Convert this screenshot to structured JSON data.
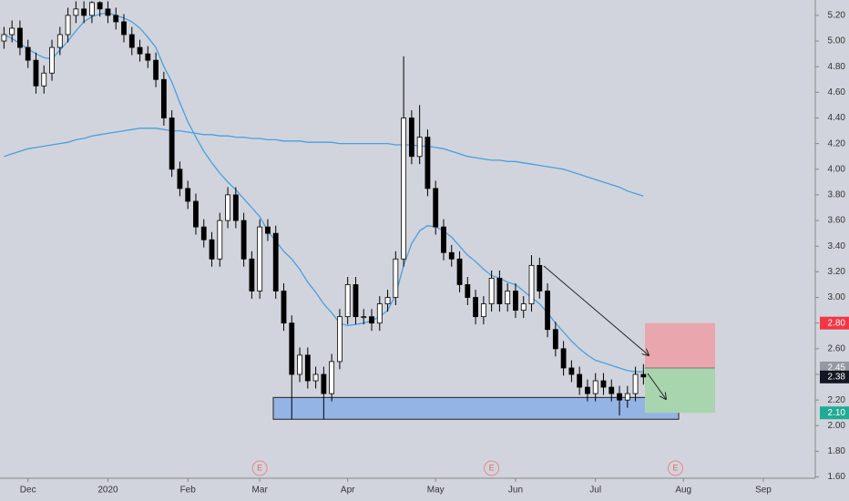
{
  "chart_data": {
    "type": "candlestick",
    "categories": [
      null,
      null,
      null,
      "Dec",
      null,
      null,
      null,
      null,
      null,
      null,
      null,
      null,
      null,
      "2020",
      null,
      null,
      null,
      null,
      null,
      null,
      null,
      null,
      null,
      "Feb",
      null,
      null,
      null,
      null,
      null,
      null,
      null,
      null,
      "Mar",
      null,
      null,
      null,
      null,
      null,
      null,
      null,
      null,
      null,
      null,
      "Apr",
      null,
      null,
      null,
      null,
      null,
      null,
      null,
      null,
      null,
      null,
      "May",
      null,
      null,
      null,
      null,
      null,
      null,
      null,
      null,
      null,
      "Jun",
      null,
      null,
      null,
      null,
      null,
      null,
      null,
      null,
      null,
      "Jul",
      null,
      null,
      null,
      null,
      null,
      null,
      null,
      null,
      null,
      null,
      "Aug",
      null,
      null,
      null,
      null,
      null,
      null,
      null,
      null,
      null,
      "Sep",
      null,
      null,
      null,
      null,
      null,
      null
    ],
    "open": [
      5.0,
      5.05,
      5.1,
      4.95,
      4.85,
      4.65,
      4.75,
      4.95,
      5.05,
      5.2,
      5.25,
      5.2,
      5.3,
      5.25,
      5.2,
      5.15,
      5.05,
      4.95,
      4.9,
      4.85,
      4.7,
      4.4,
      4.0,
      3.85,
      3.75,
      3.55,
      3.45,
      3.3,
      3.6,
      3.8,
      3.6,
      3.3,
      3.05,
      3.55,
      3.5,
      3.05,
      2.8,
      2.4,
      2.55,
      2.35,
      2.4,
      2.25,
      2.5,
      2.85,
      3.1,
      2.85,
      2.85,
      2.8,
      2.95,
      3.0,
      3.3,
      4.4,
      4.1,
      4.25,
      3.85,
      3.55,
      3.35,
      3.3,
      3.1,
      3.0,
      2.85,
      2.95,
      3.15,
      2.95,
      3.05,
      2.9,
      2.95,
      3.25,
      3.05,
      2.75,
      2.6,
      2.45,
      2.4,
      2.3,
      2.25,
      2.35,
      2.3,
      2.25,
      2.2,
      2.25,
      2.4,
      null,
      null,
      null,
      null,
      null,
      null,
      null,
      null,
      null,
      null,
      null,
      null,
      null,
      null,
      null,
      null,
      null,
      null,
      null,
      null,
      null
    ],
    "high": [
      5.11,
      5.16,
      5.16,
      5.01,
      4.91,
      4.81,
      5.01,
      5.11,
      5.26,
      5.31,
      5.31,
      5.31,
      5.31,
      5.31,
      5.26,
      5.21,
      5.11,
      5.01,
      4.96,
      4.91,
      4.76,
      4.46,
      4.06,
      3.91,
      3.81,
      3.61,
      3.51,
      3.66,
      3.86,
      3.86,
      3.66,
      3.36,
      3.61,
      3.61,
      3.56,
      3.11,
      2.86,
      2.61,
      2.61,
      2.46,
      2.46,
      2.56,
      2.91,
      3.16,
      3.16,
      2.91,
      2.91,
      3.01,
      3.06,
      3.36,
      4.88,
      4.46,
      4.5,
      4.31,
      3.91,
      3.61,
      3.41,
      3.36,
      3.16,
      3.06,
      3.01,
      3.21,
      3.21,
      3.11,
      3.11,
      3.01,
      3.33,
      3.31,
      3.11,
      2.81,
      2.66,
      2.51,
      2.46,
      2.36,
      2.41,
      2.41,
      2.36,
      2.31,
      2.31,
      2.46,
      2.48,
      null,
      null,
      null,
      null,
      null,
      null,
      null,
      null,
      null,
      null,
      null,
      null,
      null,
      null,
      null,
      null,
      null,
      null,
      null,
      null,
      null
    ],
    "low": [
      4.94,
      4.99,
      4.89,
      4.79,
      4.59,
      4.59,
      4.69,
      4.89,
      4.99,
      5.14,
      5.14,
      5.14,
      5.19,
      5.14,
      5.09,
      4.99,
      4.89,
      4.84,
      4.79,
      4.64,
      4.34,
      3.94,
      3.79,
      3.69,
      3.49,
      3.39,
      3.24,
      3.24,
      3.54,
      3.54,
      3.24,
      2.99,
      2.99,
      3.44,
      2.99,
      2.74,
      2.05,
      2.34,
      2.29,
      2.29,
      2.05,
      2.19,
      2.44,
      2.79,
      2.79,
      2.79,
      2.74,
      2.74,
      2.89,
      2.94,
      3.24,
      4.04,
      4.04,
      3.79,
      3.49,
      3.29,
      3.24,
      3.04,
      2.94,
      2.79,
      2.79,
      2.89,
      2.89,
      2.89,
      2.84,
      2.84,
      2.89,
      2.99,
      2.69,
      2.54,
      2.39,
      2.34,
      2.24,
      2.19,
      2.19,
      2.24,
      2.19,
      2.08,
      2.14,
      2.19,
      2.32,
      null,
      null,
      null,
      null,
      null,
      null,
      null,
      null,
      null,
      null,
      null,
      null,
      null,
      null,
      null,
      null,
      null,
      null,
      null,
      null,
      null
    ],
    "close": [
      5.05,
      5.1,
      4.95,
      4.85,
      4.65,
      4.75,
      4.95,
      5.05,
      5.2,
      5.25,
      5.2,
      5.3,
      5.25,
      5.2,
      5.15,
      5.05,
      4.95,
      4.9,
      4.85,
      4.7,
      4.4,
      4.0,
      3.85,
      3.75,
      3.55,
      3.45,
      3.3,
      3.6,
      3.8,
      3.6,
      3.3,
      3.05,
      3.55,
      3.5,
      3.05,
      2.8,
      2.4,
      2.55,
      2.35,
      2.4,
      2.25,
      2.5,
      2.85,
      3.1,
      2.85,
      2.85,
      2.8,
      2.95,
      3.0,
      3.3,
      4.4,
      4.1,
      4.25,
      3.85,
      3.55,
      3.35,
      3.3,
      3.1,
      3.0,
      2.85,
      2.95,
      3.15,
      2.95,
      3.05,
      2.9,
      2.95,
      3.25,
      3.05,
      2.75,
      2.6,
      2.45,
      2.4,
      2.3,
      2.25,
      2.35,
      2.3,
      2.25,
      2.2,
      2.25,
      2.4,
      2.38,
      null,
      null,
      null,
      null,
      null,
      null,
      null,
      null,
      null,
      null,
      null,
      null,
      null,
      null,
      null,
      null,
      null,
      null,
      null,
      null,
      null
    ],
    "up_color": "#ffffff",
    "down_color": "#000000",
    "lines": [
      {
        "color": "#4a9fe0",
        "values": [
          5.05,
          5.02,
          4.98,
          4.94,
          4.9,
          4.87,
          4.86,
          4.93,
          5.0,
          5.08,
          5.15,
          5.19,
          5.21,
          5.22,
          5.2,
          5.18,
          5.15,
          5.1,
          5.03,
          4.95,
          4.8,
          4.68,
          4.52,
          4.37,
          4.25,
          4.14,
          4.05,
          3.97,
          3.9,
          3.84,
          3.77,
          3.7,
          3.63,
          3.52,
          3.44,
          3.36,
          3.3,
          3.22,
          3.12,
          3.04,
          2.95,
          2.88,
          2.8,
          2.78,
          2.79,
          2.8,
          2.82,
          2.85,
          2.9,
          3.02,
          3.25,
          3.42,
          3.52,
          3.56,
          3.55,
          3.52,
          3.47,
          3.4,
          3.33,
          3.28,
          3.22,
          3.17,
          3.15,
          3.12,
          3.1,
          3.05,
          3.0,
          2.95,
          2.88,
          2.8,
          2.73,
          2.66,
          2.6,
          2.55,
          2.51,
          2.49,
          2.47,
          2.45,
          2.43,
          2.42,
          2.42,
          null,
          null,
          null,
          null,
          null,
          null,
          null,
          null,
          null,
          null,
          null,
          null,
          null,
          null,
          null,
          null,
          null,
          null,
          null,
          null,
          null
        ]
      },
      {
        "color": "#4a9fe0",
        "values": [
          4.1,
          4.12,
          4.14,
          4.16,
          4.17,
          4.18,
          4.19,
          4.2,
          4.21,
          4.23,
          4.24,
          4.26,
          4.27,
          4.28,
          4.29,
          4.3,
          4.31,
          4.32,
          4.32,
          4.32,
          4.31,
          4.3,
          4.3,
          4.29,
          4.28,
          4.27,
          4.27,
          4.26,
          4.26,
          4.25,
          4.25,
          4.24,
          4.24,
          4.23,
          4.23,
          4.22,
          4.22,
          4.22,
          4.21,
          4.21,
          4.21,
          4.21,
          4.2,
          4.2,
          4.2,
          4.2,
          4.2,
          4.2,
          4.2,
          4.19,
          4.19,
          4.19,
          4.18,
          4.18,
          4.17,
          4.16,
          4.14,
          4.12,
          4.1,
          4.09,
          4.08,
          4.07,
          4.07,
          4.06,
          4.06,
          4.05,
          4.04,
          4.03,
          4.02,
          4.01,
          4.0,
          3.98,
          3.96,
          3.94,
          3.92,
          3.9,
          3.88,
          3.86,
          3.83,
          3.81,
          3.79,
          null,
          null,
          null,
          null,
          null,
          null,
          null,
          null,
          null,
          null,
          null,
          null,
          null,
          null,
          null,
          null,
          null,
          null,
          null,
          null,
          null
        ]
      }
    ],
    "events": [
      null,
      null,
      null,
      null,
      null,
      null,
      null,
      null,
      null,
      null,
      null,
      null,
      null,
      null,
      null,
      null,
      null,
      null,
      null,
      null,
      null,
      null,
      null,
      null,
      null,
      null,
      null,
      null,
      null,
      null,
      null,
      null,
      "E",
      null,
      null,
      null,
      null,
      null,
      null,
      null,
      null,
      null,
      null,
      null,
      null,
      null,
      null,
      null,
      null,
      null,
      null,
      null,
      null,
      null,
      null,
      null,
      null,
      null,
      null,
      null,
      null,
      "E",
      null,
      null,
      null,
      null,
      null,
      null,
      null,
      null,
      null,
      null,
      null,
      null,
      null,
      null,
      null,
      null,
      null,
      null,
      null,
      null,
      null,
      null,
      "E",
      null,
      null,
      null,
      null,
      null,
      null,
      null,
      null,
      null,
      null,
      null,
      null,
      null,
      null,
      null,
      null,
      null
    ],
    "zone": [
      2.05,
      2.22
    ],
    "stop": {
      "value": 2.8,
      "label": "2.80"
    },
    "entry": {
      "value": 2.45,
      "label": "2.45"
    },
    "last": {
      "value": 2.38,
      "label": "2.38"
    },
    "target": {
      "value": 2.1,
      "label": "2.10"
    },
    "ylim": [
      1.59,
      5.32
    ],
    "yticks": [
      {
        "value": 1.6,
        "label": "1.60"
      },
      {
        "value": 1.8,
        "label": "1.80"
      },
      {
        "value": 2,
        "label": "2.00"
      },
      {
        "value": 2.2,
        "label": "2.20"
      },
      {
        "value": 2.4,
        "label": "2.40"
      },
      {
        "value": 2.6,
        "label": "2.60"
      },
      {
        "value": 2.8,
        "label": "2.80"
      },
      {
        "value": 3,
        "label": "3.00"
      },
      {
        "value": 3.2,
        "label": "3.20"
      },
      {
        "value": 3.4,
        "label": "3.40"
      },
      {
        "value": 3.6,
        "label": "3.60"
      },
      {
        "value": 3.8,
        "label": "3.80"
      },
      {
        "value": 4,
        "label": "4.00"
      },
      {
        "value": 4.2,
        "label": "4.20"
      },
      {
        "value": 4.4,
        "label": "4.40"
      },
      {
        "value": 4.6,
        "label": "4.60"
      },
      {
        "value": 4.8,
        "label": "4.80"
      },
      {
        "value": 5,
        "label": "5.00"
      },
      {
        "value": 5.2,
        "label": "5.20"
      }
    ]
  }
}
